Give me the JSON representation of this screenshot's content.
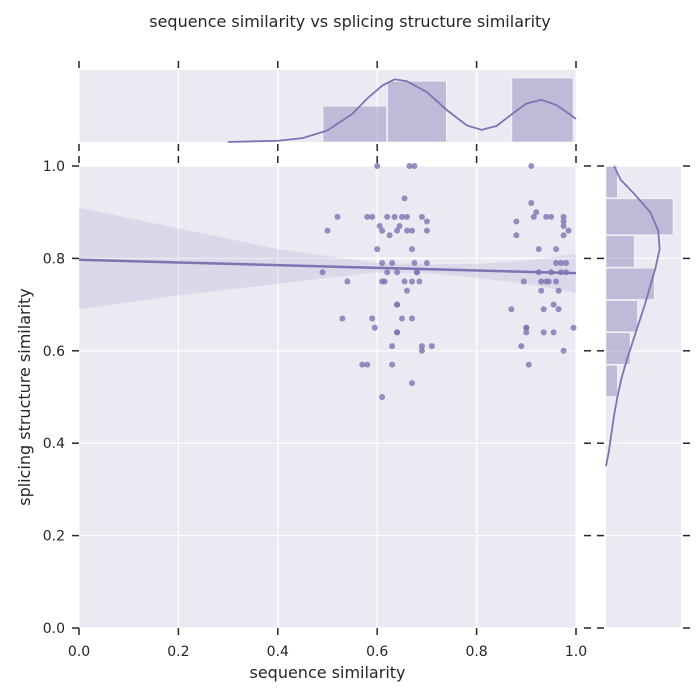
{
  "chart_data": {
    "type": "scatter",
    "title": "sequence similarity vs splicing structure similarity",
    "xlabel": "sequence similarity",
    "ylabel": "splicing structure similarity",
    "xlim": [
      0.0,
      1.0
    ],
    "ylim": [
      0.0,
      1.0
    ],
    "xticks": [
      "0.0",
      "0.2",
      "0.4",
      "0.6",
      "0.8",
      "1.0"
    ],
    "yticks": [
      "0.0",
      "0.2",
      "0.4",
      "0.6",
      "0.8",
      "1.0"
    ],
    "grid": true,
    "color": "#8172b2",
    "background": "#eaeaf2",
    "points": [
      [
        0.49,
        0.77
      ],
      [
        0.5,
        0.86
      ],
      [
        0.52,
        0.89
      ],
      [
        0.53,
        0.67
      ],
      [
        0.54,
        0.75
      ],
      [
        0.57,
        0.57
      ],
      [
        0.58,
        0.57
      ],
      [
        0.58,
        0.89
      ],
      [
        0.59,
        0.89
      ],
      [
        0.59,
        0.67
      ],
      [
        0.595,
        0.65
      ],
      [
        0.6,
        0.82
      ],
      [
        0.6,
        1.0
      ],
      [
        0.605,
        0.87
      ],
      [
        0.61,
        0.86
      ],
      [
        0.61,
        0.79
      ],
      [
        0.61,
        0.75
      ],
      [
        0.615,
        0.75
      ],
      [
        0.62,
        0.77
      ],
      [
        0.62,
        0.89
      ],
      [
        0.625,
        0.85
      ],
      [
        0.63,
        0.79
      ],
      [
        0.63,
        0.61
      ],
      [
        0.63,
        0.57
      ],
      [
        0.635,
        0.89
      ],
      [
        0.64,
        0.86
      ],
      [
        0.64,
        0.77
      ],
      [
        0.64,
        0.7
      ],
      [
        0.64,
        0.64
      ],
      [
        0.645,
        0.87
      ],
      [
        0.65,
        0.89
      ],
      [
        0.65,
        0.67
      ],
      [
        0.655,
        0.93
      ],
      [
        0.655,
        0.75
      ],
      [
        0.66,
        0.73
      ],
      [
        0.66,
        0.89
      ],
      [
        0.66,
        0.86
      ],
      [
        0.665,
        1.0
      ],
      [
        0.67,
        0.86
      ],
      [
        0.67,
        0.82
      ],
      [
        0.67,
        0.75
      ],
      [
        0.67,
        0.67
      ],
      [
        0.67,
        0.53
      ],
      [
        0.675,
        0.79
      ],
      [
        0.675,
        1.0
      ],
      [
        0.68,
        0.77
      ],
      [
        0.68,
        0.77
      ],
      [
        0.685,
        0.75
      ],
      [
        0.69,
        0.89
      ],
      [
        0.69,
        0.61
      ],
      [
        0.69,
        0.6
      ],
      [
        0.7,
        0.88
      ],
      [
        0.7,
        0.86
      ],
      [
        0.7,
        0.79
      ],
      [
        0.71,
        0.61
      ],
      [
        0.61,
        0.5
      ],
      [
        0.64,
        0.7
      ],
      [
        0.64,
        0.64
      ],
      [
        0.87,
        0.69
      ],
      [
        0.88,
        0.88
      ],
      [
        0.88,
        0.85
      ],
      [
        0.89,
        0.61
      ],
      [
        0.895,
        0.75
      ],
      [
        0.9,
        0.65
      ],
      [
        0.9,
        0.65
      ],
      [
        0.9,
        0.64
      ],
      [
        0.905,
        0.57
      ],
      [
        0.91,
        0.92
      ],
      [
        0.91,
        1.0
      ],
      [
        0.915,
        0.89
      ],
      [
        0.92,
        0.9
      ],
      [
        0.925,
        0.82
      ],
      [
        0.925,
        0.77
      ],
      [
        0.93,
        0.75
      ],
      [
        0.93,
        0.73
      ],
      [
        0.935,
        0.69
      ],
      [
        0.935,
        0.64
      ],
      [
        0.94,
        0.89
      ],
      [
        0.94,
        0.75
      ],
      [
        0.945,
        0.75
      ],
      [
        0.95,
        0.89
      ],
      [
        0.95,
        0.77
      ],
      [
        0.955,
        0.7
      ],
      [
        0.955,
        0.64
      ],
      [
        0.96,
        0.82
      ],
      [
        0.96,
        0.79
      ],
      [
        0.96,
        0.75
      ],
      [
        0.965,
        0.73
      ],
      [
        0.965,
        0.69
      ],
      [
        0.97,
        0.77
      ],
      [
        0.97,
        0.79
      ],
      [
        0.975,
        0.88
      ],
      [
        0.975,
        0.85
      ],
      [
        0.975,
        0.87
      ],
      [
        0.975,
        0.89
      ],
      [
        0.975,
        0.6
      ],
      [
        0.98,
        0.79
      ],
      [
        0.98,
        0.77
      ],
      [
        0.985,
        0.86
      ],
      [
        0.995,
        0.65
      ]
    ],
    "regression": {
      "x": [
        0.0,
        1.0
      ],
      "y": [
        0.797,
        0.768
      ]
    },
    "ci_band": {
      "x": [
        0.0,
        0.2,
        0.4,
        0.6,
        0.7,
        0.8,
        0.9,
        1.0
      ],
      "lower": [
        0.69,
        0.72,
        0.745,
        0.77,
        0.768,
        0.758,
        0.745,
        0.725
      ],
      "upper": [
        0.91,
        0.865,
        0.82,
        0.79,
        0.787,
        0.788,
        0.795,
        0.81
      ]
    },
    "marginal_x_hist": {
      "bins": [
        [
          0.49,
          0.62
        ],
        [
          0.62,
          0.74
        ],
        [
          0.87,
          0.995
        ]
      ],
      "heights": [
        0.56,
        0.95,
        1.0
      ]
    },
    "marginal_x_kde": {
      "x": [
        0.3,
        0.4,
        0.45,
        0.5,
        0.55,
        0.58,
        0.61,
        0.635,
        0.66,
        0.7,
        0.74,
        0.78,
        0.81,
        0.84,
        0.87,
        0.9,
        0.93,
        0.96,
        0.99,
        1.0
      ],
      "y": [
        0.0,
        0.02,
        0.06,
        0.18,
        0.44,
        0.68,
        0.88,
        0.98,
        0.95,
        0.78,
        0.5,
        0.26,
        0.19,
        0.25,
        0.43,
        0.6,
        0.66,
        0.58,
        0.42,
        0.36
      ]
    },
    "marginal_y_hist": {
      "bins": [
        [
          0.5,
          0.57
        ],
        [
          0.57,
          0.64
        ],
        [
          0.64,
          0.71
        ],
        [
          0.71,
          0.78
        ],
        [
          0.78,
          0.85
        ],
        [
          0.85,
          0.93
        ],
        [
          0.93,
          1.0
        ]
      ],
      "widths": [
        0.17,
        0.36,
        0.47,
        0.72,
        0.42,
        1.0,
        0.17
      ]
    },
    "marginal_y_kde": {
      "y": [
        0.35,
        0.38,
        0.42,
        0.46,
        0.5,
        0.54,
        0.58,
        0.62,
        0.66,
        0.7,
        0.74,
        0.78,
        0.82,
        0.86,
        0.9,
        0.94,
        0.97,
        1.0
      ],
      "x": [
        0.0,
        0.04,
        0.08,
        0.12,
        0.17,
        0.23,
        0.31,
        0.4,
        0.49,
        0.58,
        0.66,
        0.74,
        0.8,
        0.78,
        0.66,
        0.42,
        0.22,
        0.12
      ]
    }
  }
}
